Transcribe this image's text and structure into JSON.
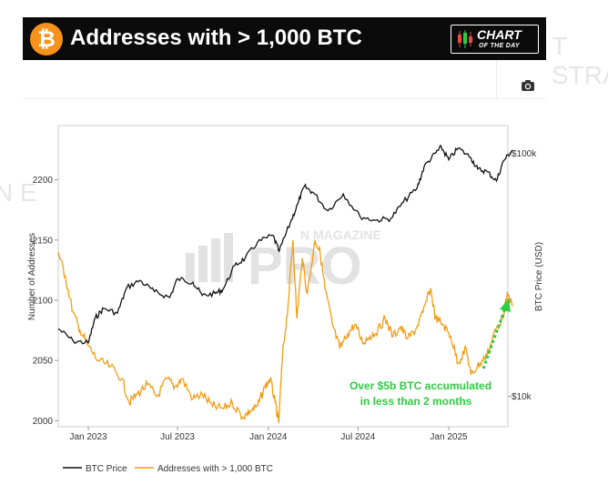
{
  "banner": {
    "title": "Addresses with > 1,000 BTC",
    "btc_symbol": "₿",
    "badge_line1": "CHART",
    "badge_line2": "OF THE DAY"
  },
  "toolbar": {
    "camera_icon": "camera-icon"
  },
  "watermark": {
    "line1": "N MAGAZINE",
    "line2": "PRO"
  },
  "background_ghost": {
    "right_text": "T STRA",
    "left_text": "N E"
  },
  "colors": {
    "btc_price": "#111111",
    "addresses": "#f39c12",
    "annotation": "#2ecc40",
    "bitcoin_orange": "#f7931a"
  },
  "chart_data": {
    "type": "line",
    "title": "Addresses with > 1,000 BTC",
    "x_labels": [
      "Jan 2023",
      "Jul 2023",
      "Jan 2024",
      "Jul 2024",
      "Jan 2025"
    ],
    "xlim": [
      "2022-11",
      "2025-05"
    ],
    "left_axis": {
      "label": "Number of Addresses",
      "ticks": [
        2000,
        2050,
        2100,
        2150,
        2200
      ],
      "range": [
        1995,
        2245
      ]
    },
    "right_axis": {
      "label": "BTC Price (USD)",
      "scale": "log",
      "ticks": [
        "$10k",
        "$100k"
      ],
      "tick_values": [
        10000,
        100000
      ],
      "range": [
        7500,
        130000
      ]
    },
    "series": [
      {
        "name": "BTC Price",
        "axis": "right",
        "points": [
          [
            "2022-11-01",
            19000
          ],
          [
            "2022-12-01",
            16900
          ],
          [
            "2023-01-01",
            16600
          ],
          [
            "2023-01-15",
            21000
          ],
          [
            "2023-02-01",
            23000
          ],
          [
            "2023-03-01",
            22000
          ],
          [
            "2023-03-20",
            28000
          ],
          [
            "2023-04-15",
            30000
          ],
          [
            "2023-05-15",
            27000
          ],
          [
            "2023-06-15",
            25500
          ],
          [
            "2023-07-01",
            30500
          ],
          [
            "2023-08-01",
            29500
          ],
          [
            "2023-08-20",
            26000
          ],
          [
            "2023-09-15",
            26500
          ],
          [
            "2023-10-01",
            27500
          ],
          [
            "2023-10-25",
            34500
          ],
          [
            "2023-11-15",
            37000
          ],
          [
            "2023-12-10",
            43000
          ],
          [
            "2024-01-10",
            46000
          ],
          [
            "2024-01-23",
            39500
          ],
          [
            "2024-02-15",
            52000
          ],
          [
            "2024-03-01",
            62000
          ],
          [
            "2024-03-14",
            73000
          ],
          [
            "2024-04-01",
            69000
          ],
          [
            "2024-05-01",
            58000
          ],
          [
            "2024-06-01",
            68000
          ],
          [
            "2024-07-05",
            55000
          ],
          [
            "2024-08-05",
            53000
          ],
          [
            "2024-09-06",
            54000
          ],
          [
            "2024-10-01",
            63000
          ],
          [
            "2024-10-29",
            72000
          ],
          [
            "2024-11-12",
            88000
          ],
          [
            "2024-12-05",
            100000
          ],
          [
            "2024-12-17",
            106000
          ],
          [
            "2025-01-01",
            94000
          ],
          [
            "2025-01-20",
            105000
          ],
          [
            "2025-02-15",
            96000
          ],
          [
            "2025-03-01",
            86000
          ],
          [
            "2025-03-20",
            84000
          ],
          [
            "2025-04-08",
            77000
          ],
          [
            "2025-04-22",
            93000
          ],
          [
            "2025-05-10",
            103000
          ]
        ]
      },
      {
        "name": "Addresses with > 1,000 BTC",
        "axis": "left",
        "points": [
          [
            "2022-11-01",
            2140
          ],
          [
            "2022-11-15",
            2120
          ],
          [
            "2022-12-01",
            2090
          ],
          [
            "2022-12-15",
            2075
          ],
          [
            "2023-01-01",
            2062
          ],
          [
            "2023-01-20",
            2050
          ],
          [
            "2023-02-15",
            2045
          ],
          [
            "2023-03-10",
            2035
          ],
          [
            "2023-03-25",
            2015
          ],
          [
            "2023-04-10",
            2022
          ],
          [
            "2023-05-01",
            2030
          ],
          [
            "2023-05-20",
            2020
          ],
          [
            "2023-06-10",
            2035
          ],
          [
            "2023-06-25",
            2028
          ],
          [
            "2023-07-10",
            2035
          ],
          [
            "2023-08-01",
            2018
          ],
          [
            "2023-08-20",
            2022
          ],
          [
            "2023-09-10",
            2012
          ],
          [
            "2023-10-01",
            2010
          ],
          [
            "2023-10-20",
            2015
          ],
          [
            "2023-11-10",
            2003
          ],
          [
            "2023-11-25",
            2008
          ],
          [
            "2023-12-10",
            2012
          ],
          [
            "2023-12-25",
            2028
          ],
          [
            "2024-01-05",
            2035
          ],
          [
            "2024-01-15",
            2015
          ],
          [
            "2024-01-22",
            1998
          ],
          [
            "2024-01-30",
            2055
          ],
          [
            "2024-02-10",
            2095
          ],
          [
            "2024-02-20",
            2150
          ],
          [
            "2024-02-28",
            2085
          ],
          [
            "2024-03-10",
            2135
          ],
          [
            "2024-03-20",
            2105
          ],
          [
            "2024-04-05",
            2150
          ],
          [
            "2024-04-15",
            2140
          ],
          [
            "2024-04-25",
            2110
          ],
          [
            "2024-05-10",
            2080
          ],
          [
            "2024-05-25",
            2060
          ],
          [
            "2024-06-10",
            2072
          ],
          [
            "2024-06-25",
            2080
          ],
          [
            "2024-07-10",
            2065
          ],
          [
            "2024-07-25",
            2070
          ],
          [
            "2024-08-10",
            2075
          ],
          [
            "2024-08-25",
            2085
          ],
          [
            "2024-09-10",
            2070
          ],
          [
            "2024-09-25",
            2078
          ],
          [
            "2024-10-10",
            2068
          ],
          [
            "2024-10-25",
            2075
          ],
          [
            "2024-11-10",
            2090
          ],
          [
            "2024-11-25",
            2110
          ],
          [
            "2024-12-05",
            2085
          ],
          [
            "2024-12-20",
            2080
          ],
          [
            "2025-01-05",
            2070
          ],
          [
            "2025-01-20",
            2048
          ],
          [
            "2025-02-05",
            2060
          ],
          [
            "2025-02-15",
            2038
          ],
          [
            "2025-02-28",
            2045
          ],
          [
            "2025-03-15",
            2052
          ],
          [
            "2025-03-25",
            2060
          ],
          [
            "2025-04-05",
            2075
          ],
          [
            "2025-04-20",
            2085
          ],
          [
            "2025-05-01",
            2105
          ],
          [
            "2025-05-10",
            2095
          ]
        ]
      }
    ],
    "annotation": {
      "line1": "Over $5b BTC accumulated",
      "line2": "in less than 2 months"
    },
    "legend": {
      "position": "bottom-left",
      "entries": [
        "BTC Price",
        "Addresses with > 1,000 BTC"
      ]
    }
  }
}
